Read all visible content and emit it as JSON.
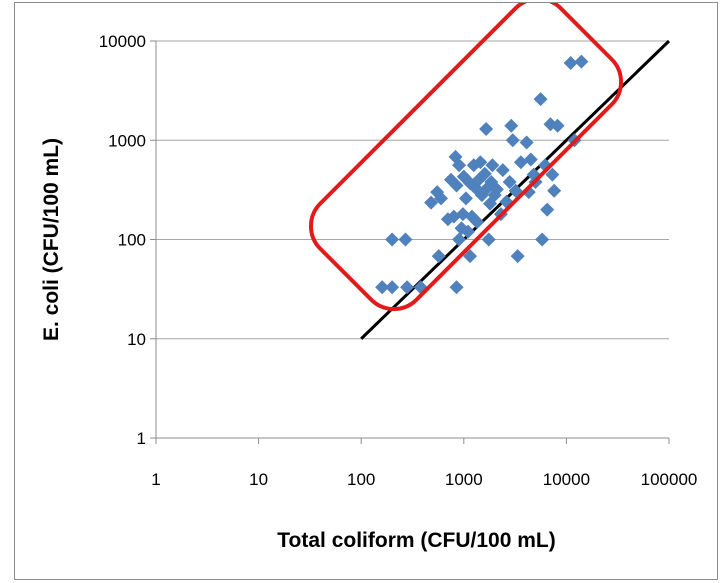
{
  "chart_data": {
    "type": "scatter",
    "title": "",
    "xlabel": "Total coliform (CFU/100 mL)",
    "ylabel": "E. coli (CFU/100 mL)",
    "x_scale": "log",
    "y_scale": "log",
    "xlim": [
      1,
      100000
    ],
    "ylim": [
      1,
      10000
    ],
    "grid": "horizontal major gridlines",
    "legend": "none",
    "x_ticks": [
      "1",
      "10",
      "100",
      "1000",
      "10000",
      "100000"
    ],
    "y_ticks": [
      "1",
      "10",
      "100",
      "1000",
      "10000"
    ],
    "marker": "diamond",
    "colors": {
      "points": "#4f81bd",
      "line": "#000000",
      "highlight_box": "#e31a1c",
      "grid": "#a6a6a6"
    },
    "reference_line": {
      "x": [
        100,
        100000
      ],
      "y": [
        10,
        10000
      ]
    },
    "points": [
      {
        "x": 160,
        "y": 33
      },
      {
        "x": 200,
        "y": 33
      },
      {
        "x": 280,
        "y": 33
      },
      {
        "x": 380,
        "y": 33
      },
      {
        "x": 850,
        "y": 33
      },
      {
        "x": 200,
        "y": 100
      },
      {
        "x": 270,
        "y": 100
      },
      {
        "x": 570,
        "y": 68
      },
      {
        "x": 1150,
        "y": 68
      },
      {
        "x": 3350,
        "y": 68
      },
      {
        "x": 900,
        "y": 100
      },
      {
        "x": 1750,
        "y": 100
      },
      {
        "x": 5800,
        "y": 100
      },
      {
        "x": 480,
        "y": 235
      },
      {
        "x": 550,
        "y": 300
      },
      {
        "x": 600,
        "y": 260
      },
      {
        "x": 700,
        "y": 160
      },
      {
        "x": 750,
        "y": 400
      },
      {
        "x": 800,
        "y": 170
      },
      {
        "x": 830,
        "y": 680
      },
      {
        "x": 850,
        "y": 350
      },
      {
        "x": 900,
        "y": 560
      },
      {
        "x": 950,
        "y": 130
      },
      {
        "x": 980,
        "y": 180
      },
      {
        "x": 1000,
        "y": 430
      },
      {
        "x": 1050,
        "y": 260
      },
      {
        "x": 1100,
        "y": 120
      },
      {
        "x": 1150,
        "y": 370
      },
      {
        "x": 1200,
        "y": 170
      },
      {
        "x": 1250,
        "y": 560
      },
      {
        "x": 1300,
        "y": 330
      },
      {
        "x": 1350,
        "y": 150
      },
      {
        "x": 1400,
        "y": 400
      },
      {
        "x": 1450,
        "y": 600
      },
      {
        "x": 1500,
        "y": 280
      },
      {
        "x": 1600,
        "y": 460
      },
      {
        "x": 1650,
        "y": 1300
      },
      {
        "x": 1700,
        "y": 330
      },
      {
        "x": 1800,
        "y": 230
      },
      {
        "x": 1850,
        "y": 380
      },
      {
        "x": 1900,
        "y": 560
      },
      {
        "x": 2000,
        "y": 280
      },
      {
        "x": 2100,
        "y": 320
      },
      {
        "x": 2300,
        "y": 180
      },
      {
        "x": 2400,
        "y": 500
      },
      {
        "x": 2600,
        "y": 240
      },
      {
        "x": 2800,
        "y": 380
      },
      {
        "x": 2900,
        "y": 1400
      },
      {
        "x": 3000,
        "y": 1000
      },
      {
        "x": 3200,
        "y": 310
      },
      {
        "x": 3600,
        "y": 600
      },
      {
        "x": 4100,
        "y": 950
      },
      {
        "x": 4300,
        "y": 300
      },
      {
        "x": 4500,
        "y": 640
      },
      {
        "x": 4800,
        "y": 450
      },
      {
        "x": 5000,
        "y": 380
      },
      {
        "x": 5600,
        "y": 2600
      },
      {
        "x": 6200,
        "y": 560
      },
      {
        "x": 6500,
        "y": 200
      },
      {
        "x": 7000,
        "y": 1450
      },
      {
        "x": 7300,
        "y": 450
      },
      {
        "x": 7600,
        "y": 310
      },
      {
        "x": 8200,
        "y": 1400
      },
      {
        "x": 11000,
        "y": 6000
      },
      {
        "x": 12000,
        "y": 1000
      },
      {
        "x": 14000,
        "y": 6200
      }
    ]
  }
}
